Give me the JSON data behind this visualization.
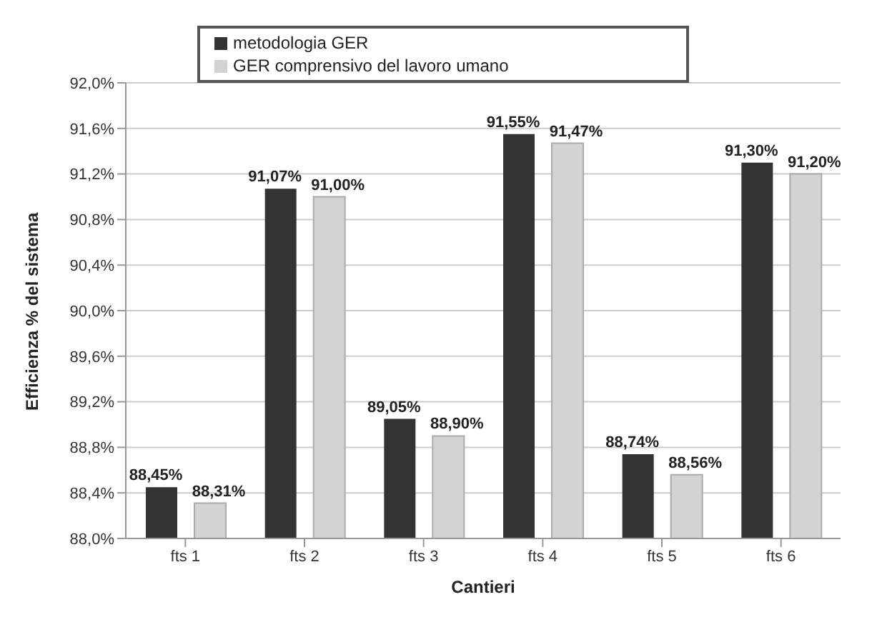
{
  "chart_data": {
    "type": "bar",
    "xlabel": "Cantieri",
    "ylabel": "Efficienza % del sistema",
    "categories": [
      "fts 1",
      "fts 2",
      "fts 3",
      "fts 4",
      "fts 5",
      "fts 6"
    ],
    "series": [
      {
        "name": "metodologia GER",
        "color": "#333333",
        "values": [
          88.45,
          91.07,
          89.05,
          91.55,
          88.74,
          91.3
        ],
        "value_labels": [
          "88,45%",
          "91,07%",
          "89,05%",
          "91,55%",
          "88,74%",
          "91,30%"
        ]
      },
      {
        "name": "GER comprensivo del lavoro umano",
        "color": "#d3d3d3",
        "values": [
          88.31,
          91.0,
          88.9,
          91.47,
          88.56,
          91.2
        ],
        "value_labels": [
          "88,31%",
          "91,00%",
          "88,90%",
          "91,47%",
          "88,56%",
          "91,20%"
        ]
      }
    ],
    "ylim": [
      88,
      92
    ],
    "yticks": [
      {
        "value": 88,
        "label": "88,0%"
      },
      {
        "value": 88.4,
        "label": "88,4%"
      },
      {
        "value": 88.8,
        "label": "88,8%"
      },
      {
        "value": 89.2,
        "label": "89,2%"
      },
      {
        "value": 89.6,
        "label": "89,6%"
      },
      {
        "value": 90,
        "label": "90,0%"
      },
      {
        "value": 90.4,
        "label": "90,4%"
      },
      {
        "value": 90.8,
        "label": "90,8%"
      },
      {
        "value": 91.2,
        "label": "91,2%"
      },
      {
        "value": 91.6,
        "label": "91,6%"
      },
      {
        "value": 92,
        "label": "92,0%"
      }
    ],
    "grid": "y",
    "legend": "top"
  }
}
